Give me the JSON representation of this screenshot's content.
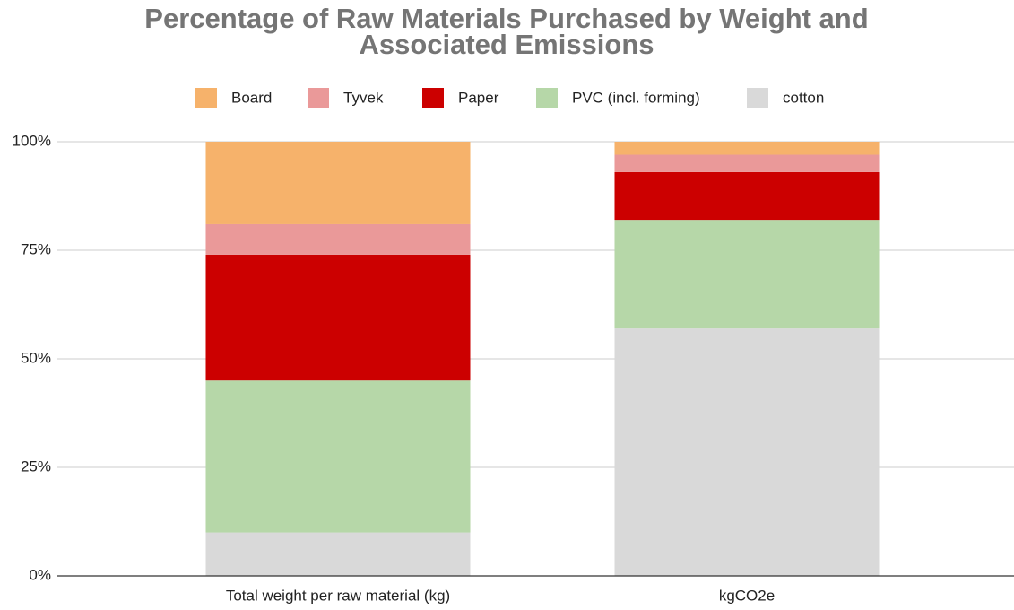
{
  "chart_data": {
    "type": "stacked_bar",
    "title": "Percentage of Raw Materials Purchased by Weight and Associated Emissions",
    "categories": [
      "Total weight per raw material (kg)",
      "kgCO2e"
    ],
    "series": [
      {
        "name": "Board",
        "color": "#f6b26b",
        "values": [
          19,
          3
        ]
      },
      {
        "name": "Tyvek",
        "color": "#ea9999",
        "values": [
          7,
          4
        ]
      },
      {
        "name": "Paper",
        "color": "#cc0000",
        "values": [
          29,
          11
        ]
      },
      {
        "name": "PVC (incl. forming)",
        "color": "#b6d7a8",
        "values": [
          35,
          25
        ]
      },
      {
        "name": "cotton",
        "color": "#d9d9d9",
        "values": [
          10,
          57
        ]
      }
    ],
    "ylim": [
      0,
      100
    ],
    "yticks": [
      {
        "value": 0,
        "label": "0%"
      },
      {
        "value": 25,
        "label": "25%"
      },
      {
        "value": 50,
        "label": "50%"
      },
      {
        "value": 75,
        "label": "75%"
      },
      {
        "value": 100,
        "label": "100%"
      }
    ],
    "grid": true,
    "legend": "top"
  }
}
